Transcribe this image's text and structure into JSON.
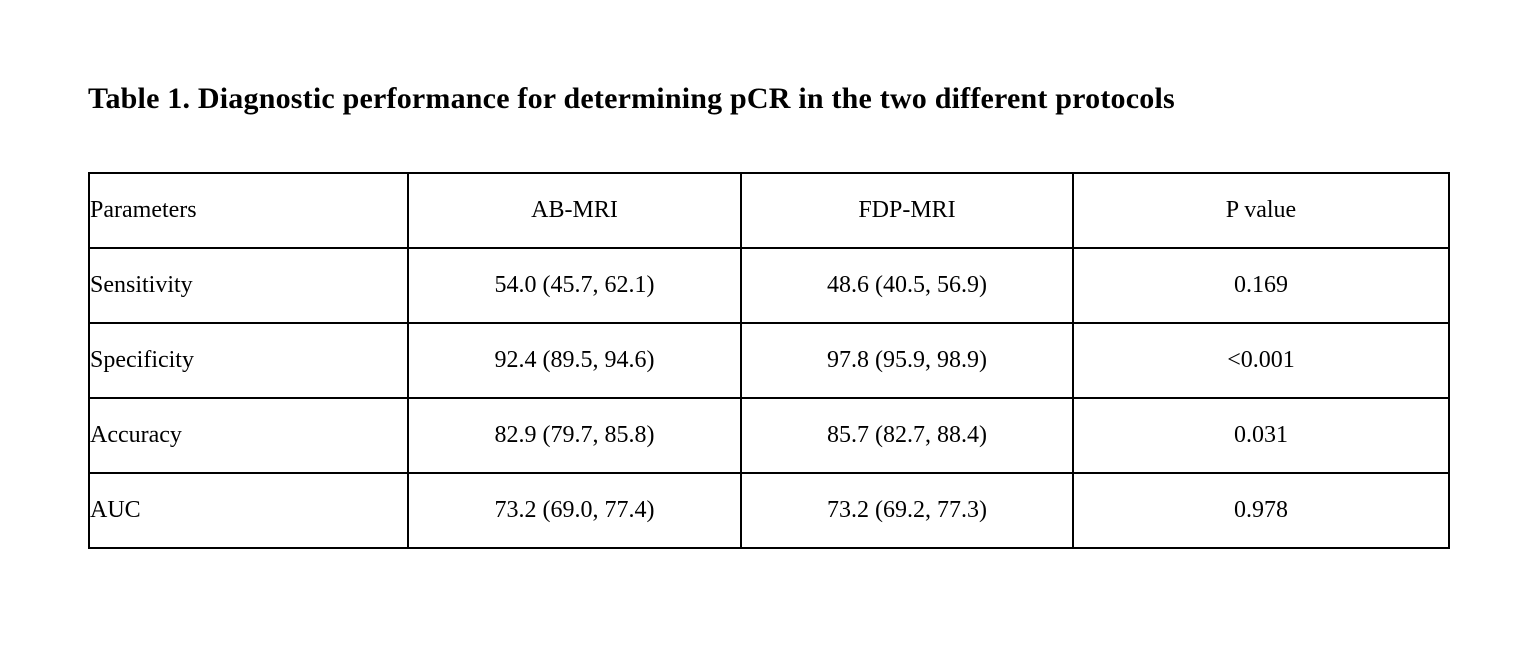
{
  "page": {
    "background_color": "#ffffff",
    "text_color": "#000000",
    "border_color": "#000000"
  },
  "title": "Table 1. Diagnostic performance for determining pCR in the two different protocols",
  "table": {
    "columns": [
      "Parameters",
      "AB-MRI",
      "FDP-MRI",
      "P value"
    ],
    "rows": [
      {
        "parameter": "Sensitivity",
        "ab_mri": "54.0 (45.7, 62.1)",
        "fdp_mri": "48.6 (40.5, 56.9)",
        "p_value": "0.169"
      },
      {
        "parameter": "Specificity",
        "ab_mri": "92.4 (89.5, 94.6)",
        "fdp_mri": "97.8 (95.9, 98.9)",
        "p_value": "<0.001"
      },
      {
        "parameter": "Accuracy",
        "ab_mri": "82.9 (79.7, 85.8)",
        "fdp_mri": "85.7 (82.7, 88.4)",
        "p_value": "0.031"
      },
      {
        "parameter": "AUC",
        "ab_mri": "73.2 (69.0, 77.4)",
        "fdp_mri": "73.2 (69.2, 77.3)",
        "p_value": "0.978"
      }
    ]
  }
}
